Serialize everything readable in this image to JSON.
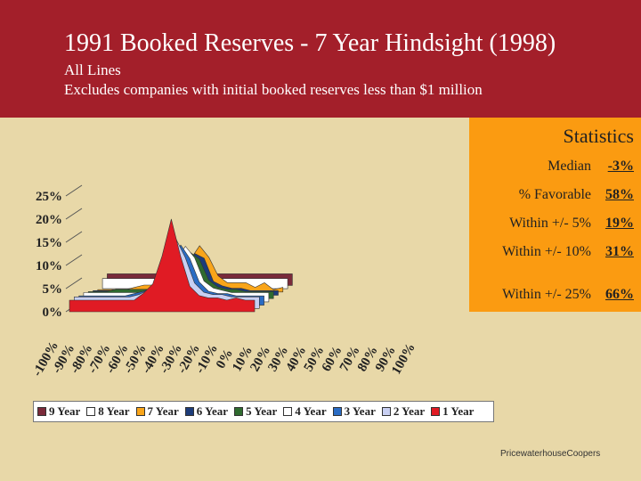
{
  "header": {
    "title": "1991 Booked Reserves - 7 Year Hindsight (1998)",
    "subtitle_line1": "All Lines",
    "subtitle_line2": "Excludes companies with initial booked reserves less than $1 million"
  },
  "stats": {
    "title": "Statistics",
    "rows": [
      {
        "label": "Median",
        "value": "-3%"
      },
      {
        "label": "% Favorable",
        "value": "58%"
      },
      {
        "label": "Within +/- 5%",
        "value": "19%"
      },
      {
        "label": "Within +/- 10%",
        "value": "31%"
      },
      {
        "label": "Within +/- 25%",
        "value": "66%"
      }
    ]
  },
  "footer": "PricewaterhouseCoopers",
  "colors": {
    "header_bg": "#a31f2a",
    "page_bg": "#e8d8a8",
    "stats_bg": "#fb9b11"
  },
  "chart_data": {
    "type": "area",
    "subtype": "3d stacked area, series drawn back-to-front",
    "ylim": [
      0,
      0.25
    ],
    "y_ticks": [
      "0%",
      "5%",
      "10%",
      "15%",
      "20%",
      "25%"
    ],
    "categories": [
      "-100%",
      "-90%",
      "-80%",
      "-70%",
      "-60%",
      "-50%",
      "-40%",
      "-30%",
      "-20%",
      "-10%",
      "0%",
      "10%",
      "20%",
      "30%",
      "40%",
      "50%",
      "60%",
      "70%",
      "80%",
      "90%",
      "100%"
    ],
    "series": [
      {
        "name": "9 Year",
        "color": "#7a2a3a",
        "values": [
          0.025,
          0.025,
          0.025,
          0.025,
          0.025,
          0.025,
          0.025,
          0.025,
          0.025,
          0.025,
          0.025,
          0.025,
          0.025,
          0.025,
          0.025,
          0.025,
          0.025,
          0.025,
          0.025,
          0.025,
          0.025
        ]
      },
      {
        "name": "8 Year",
        "color": "#ffffff",
        "values": [
          0.022,
          0.022,
          0.022,
          0.022,
          0.022,
          0.022,
          0.022,
          0.022,
          0.022,
          0.022,
          0.022,
          0.022,
          0.022,
          0.022,
          0.022,
          0.022,
          0.022,
          0.022,
          0.022,
          0.022,
          0.022
        ]
      },
      {
        "name": "7 Year",
        "color": "#f9a51a",
        "values": [
          0.005,
          0.005,
          0.005,
          0.005,
          0.01,
          0.015,
          0.015,
          0.02,
          0.03,
          0.05,
          0.07,
          0.1,
          0.075,
          0.035,
          0.02,
          0.02,
          0.02,
          0.01,
          0.02,
          0.005,
          0.01
        ]
      },
      {
        "name": "6 Year",
        "color": "#1d3c7a",
        "values": [
          0.01,
          0.01,
          0.01,
          0.01,
          0.01,
          0.01,
          0.01,
          0.015,
          0.02,
          0.04,
          0.06,
          0.09,
          0.08,
          0.03,
          0.02,
          0.015,
          0.015,
          0.01,
          0.01,
          0.01,
          0.01
        ]
      },
      {
        "name": "5 Year",
        "color": "#2f6b2f",
        "values": [
          0.015,
          0.015,
          0.015,
          0.02,
          0.02,
          0.02,
          0.02,
          0.02,
          0.03,
          0.05,
          0.08,
          0.1,
          0.085,
          0.04,
          0.025,
          0.02,
          0.02,
          0.015,
          0.015,
          0.015,
          0.015
        ]
      },
      {
        "name": "4 Year",
        "color": "#ffffff",
        "values": [
          0.02,
          0.02,
          0.02,
          0.02,
          0.02,
          0.02,
          0.02,
          0.025,
          0.035,
          0.055,
          0.09,
          0.12,
          0.095,
          0.045,
          0.03,
          0.025,
          0.02,
          0.02,
          0.02,
          0.02,
          0.02
        ]
      },
      {
        "name": "3 Year",
        "color": "#2a6cc4",
        "values": [
          0.02,
          0.02,
          0.02,
          0.02,
          0.02,
          0.02,
          0.025,
          0.03,
          0.04,
          0.06,
          0.1,
          0.13,
          0.1,
          0.05,
          0.03,
          0.025,
          0.025,
          0.02,
          0.02,
          0.02,
          0.02
        ]
      },
      {
        "name": "2 Year",
        "color": "#c8cff2",
        "values": [
          0.025,
          0.025,
          0.025,
          0.025,
          0.025,
          0.025,
          0.025,
          0.03,
          0.04,
          0.06,
          0.11,
          0.15,
          0.11,
          0.055,
          0.035,
          0.03,
          0.03,
          0.025,
          0.025,
          0.025,
          0.025
        ]
      },
      {
        "name": "1 Year",
        "color": "#e01b24",
        "values": [
          0.025,
          0.025,
          0.025,
          0.025,
          0.025,
          0.025,
          0.025,
          0.025,
          0.04,
          0.06,
          0.12,
          0.2,
          0.12,
          0.055,
          0.035,
          0.03,
          0.03,
          0.025,
          0.03,
          0.025,
          0.025
        ]
      }
    ]
  }
}
